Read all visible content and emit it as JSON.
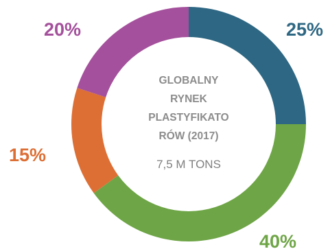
{
  "chart_data": {
    "type": "pie",
    "donut": true,
    "categories": [
      "",
      "",
      "",
      ""
    ],
    "values": [
      25,
      40,
      15,
      20
    ],
    "labels": [
      "25%",
      "40%",
      "15%",
      "20%"
    ],
    "colors": [
      "#2e6783",
      "#6ea546",
      "#dd6f35",
      "#a4509c"
    ],
    "start": "top, clockwise",
    "legend": "none",
    "center_text": {
      "title_lines": [
        "GLOBALNY",
        "RYNEK",
        "PLASTYFIKATO",
        "RÓW (2017)"
      ],
      "value": "7,5 M TONS"
    }
  }
}
